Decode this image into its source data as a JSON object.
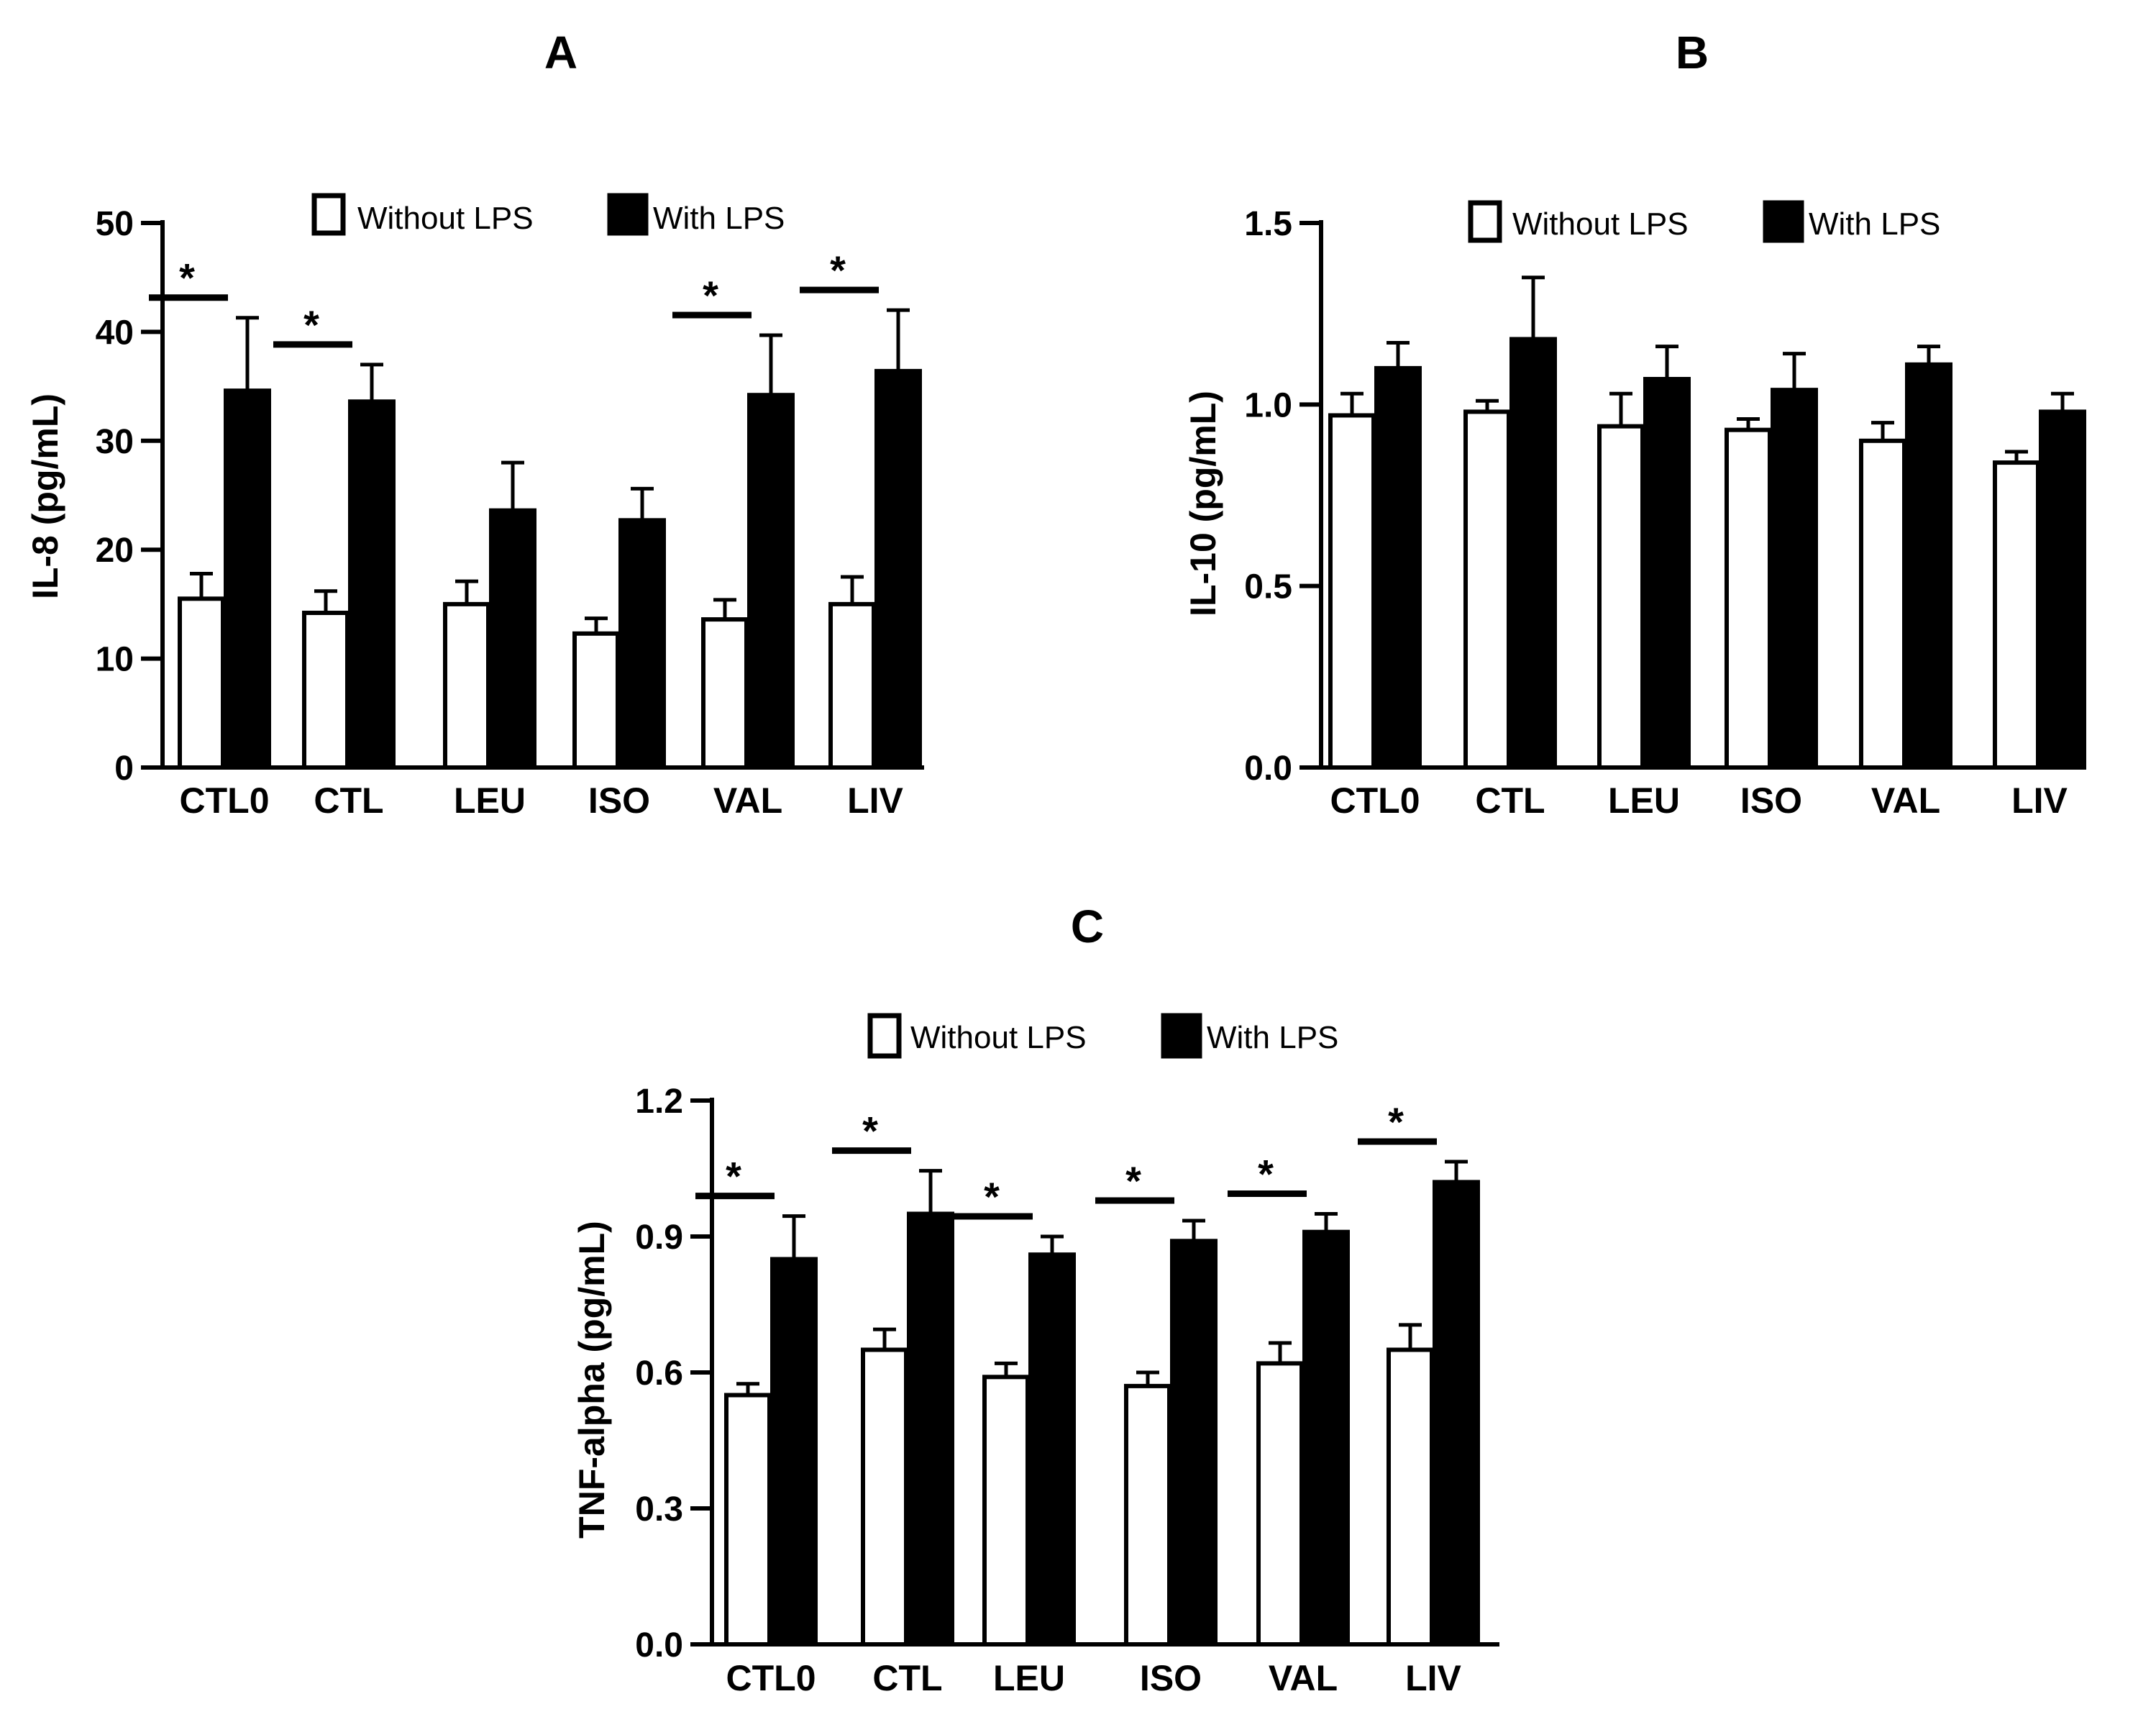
{
  "chart_data": [
    {
      "panel": "A",
      "type": "bar",
      "title": "A",
      "ylabel": "IL-8 (pg/mL)",
      "xlabel": "",
      "ylim": [
        0,
        50
      ],
      "yticks": [
        0,
        10,
        20,
        30,
        40,
        50
      ],
      "ytick_labels": [
        "0",
        "10",
        "20",
        "30",
        "40",
        "50"
      ],
      "categories": [
        "CTL0",
        "CTL",
        "LEU",
        "ISO",
        "VAL",
        "LIV"
      ],
      "legend": {
        "placement": "top",
        "entries": [
          "Without LPS",
          "With LPS"
        ]
      },
      "series": [
        {
          "name": "Without LPS",
          "color": "#ffffff",
          "values": [
            15.5,
            14.2,
            15.0,
            12.3,
            13.6,
            15.0
          ],
          "errors": [
            2.3,
            2.0,
            2.1,
            1.4,
            1.8,
            2.5
          ]
        },
        {
          "name": "With LPS",
          "color": "#000000",
          "values": [
            34.6,
            33.6,
            23.6,
            22.7,
            34.2,
            36.4
          ],
          "errors": [
            6.7,
            3.4,
            4.4,
            2.9,
            5.5,
            5.6
          ]
        }
      ],
      "significance": [
        {
          "category": "CTL0",
          "label": "*"
        },
        {
          "category": "CTL",
          "label": "*"
        },
        {
          "category": "VAL",
          "label": "*"
        },
        {
          "category": "LIV",
          "label": "*"
        }
      ]
    },
    {
      "panel": "B",
      "type": "bar",
      "title": "B",
      "ylabel": "IL-10 (pg/mL)",
      "xlabel": "",
      "ylim": [
        0,
        1.5
      ],
      "yticks": [
        0,
        0.5,
        1.0,
        1.5
      ],
      "ytick_labels": [
        "0.0",
        "0.5",
        "1.0",
        "1.5"
      ],
      "categories": [
        "CTL0",
        "CTL",
        "LEU",
        "ISO",
        "VAL",
        "LIV"
      ],
      "legend": {
        "placement": "top",
        "entries": [
          "Without LPS",
          "With LPS"
        ]
      },
      "series": [
        {
          "name": "Without LPS",
          "color": "#ffffff",
          "values": [
            0.97,
            0.98,
            0.94,
            0.93,
            0.9,
            0.84
          ],
          "errors": [
            0.06,
            0.03,
            0.09,
            0.03,
            0.05,
            0.03
          ]
        },
        {
          "name": "With LPS",
          "color": "#000000",
          "values": [
            1.1,
            1.18,
            1.07,
            1.04,
            1.11,
            0.98
          ],
          "errors": [
            0.07,
            0.17,
            0.09,
            0.1,
            0.05,
            0.05
          ]
        }
      ],
      "significance": []
    },
    {
      "panel": "C",
      "type": "bar",
      "title": "C",
      "ylabel": "TNF-alpha (pg/mL)",
      "xlabel": "",
      "ylim": [
        0,
        1.2
      ],
      "yticks": [
        0,
        0.3,
        0.6,
        0.9,
        1.2
      ],
      "ytick_labels": [
        "0.0",
        "0.3",
        "0.6",
        "0.9",
        "1.2"
      ],
      "categories": [
        "CTL0",
        "CTL",
        "LEU",
        "ISO",
        "VAL",
        "LIV"
      ],
      "legend": {
        "placement": "top",
        "entries": [
          "Without LPS",
          "With LPS"
        ]
      },
      "series": [
        {
          "name": "Without LPS",
          "color": "#ffffff",
          "values": [
            0.55,
            0.65,
            0.59,
            0.57,
            0.62,
            0.65
          ],
          "errors": [
            0.025,
            0.045,
            0.03,
            0.03,
            0.045,
            0.055
          ]
        },
        {
          "name": "With LPS",
          "color": "#000000",
          "values": [
            0.85,
            0.95,
            0.86,
            0.89,
            0.91,
            1.02
          ],
          "errors": [
            0.095,
            0.095,
            0.04,
            0.045,
            0.04,
            0.045
          ]
        }
      ],
      "significance": [
        {
          "category": "CTL0",
          "label": "*"
        },
        {
          "category": "CTL",
          "label": "*"
        },
        {
          "category": "LEU",
          "label": "*"
        },
        {
          "category": "ISO",
          "label": "*"
        },
        {
          "category": "VAL",
          "label": "*"
        },
        {
          "category": "LIV",
          "label": "*"
        }
      ]
    }
  ]
}
